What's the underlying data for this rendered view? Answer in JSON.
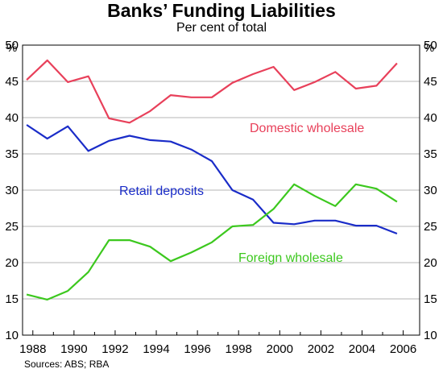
{
  "chart_data": {
    "type": "line",
    "title": "Banks’ Funding Liabilities",
    "subtitle": "Per cent of total",
    "source": "Sources: ABS; RBA",
    "y_unit_label": "%",
    "ylim": [
      10,
      50
    ],
    "y_ticks": [
      "10",
      "15",
      "20",
      "25",
      "30",
      "35",
      "40",
      "45",
      "50"
    ],
    "x_ticks": [
      "1988",
      "1990",
      "1992",
      "1994",
      "1996",
      "1998",
      "2000",
      "2002",
      "2004",
      "2006"
    ],
    "xlim": [
      1987.5,
      2006.8
    ],
    "x": [
      1987.7,
      1988.7,
      1989.7,
      1990.7,
      1991.7,
      1992.7,
      1993.7,
      1994.7,
      1995.7,
      1996.7,
      1997.7,
      1998.7,
      1999.7,
      2000.7,
      2001.7,
      2002.7,
      2003.7,
      2004.7,
      2005.7
    ],
    "series": [
      {
        "name": "Domestic wholesale",
        "color": "#e8405a",
        "values": [
          45.2,
          47.9,
          44.9,
          45.7,
          39.9,
          39.3,
          40.9,
          43.1,
          42.8,
          42.8,
          44.8,
          46.0,
          47.0,
          43.8,
          44.9,
          46.3,
          44.0,
          44.4,
          47.5
        ]
      },
      {
        "name": "Retail deposits",
        "color": "#1a2cc8",
        "values": [
          39.0,
          37.1,
          38.8,
          35.4,
          36.8,
          37.5,
          36.9,
          36.7,
          35.6,
          34.0,
          30.0,
          28.7,
          25.5,
          25.3,
          25.8,
          25.8,
          25.1,
          25.1,
          24.0
        ]
      },
      {
        "name": "Foreign wholesale",
        "color": "#3cc81e",
        "values": [
          15.6,
          14.9,
          16.1,
          18.7,
          23.1,
          23.1,
          22.2,
          20.2,
          21.4,
          22.8,
          25.0,
          25.2,
          27.4,
          30.8,
          29.2,
          27.8,
          30.8,
          30.2,
          28.4
        ]
      }
    ]
  }
}
